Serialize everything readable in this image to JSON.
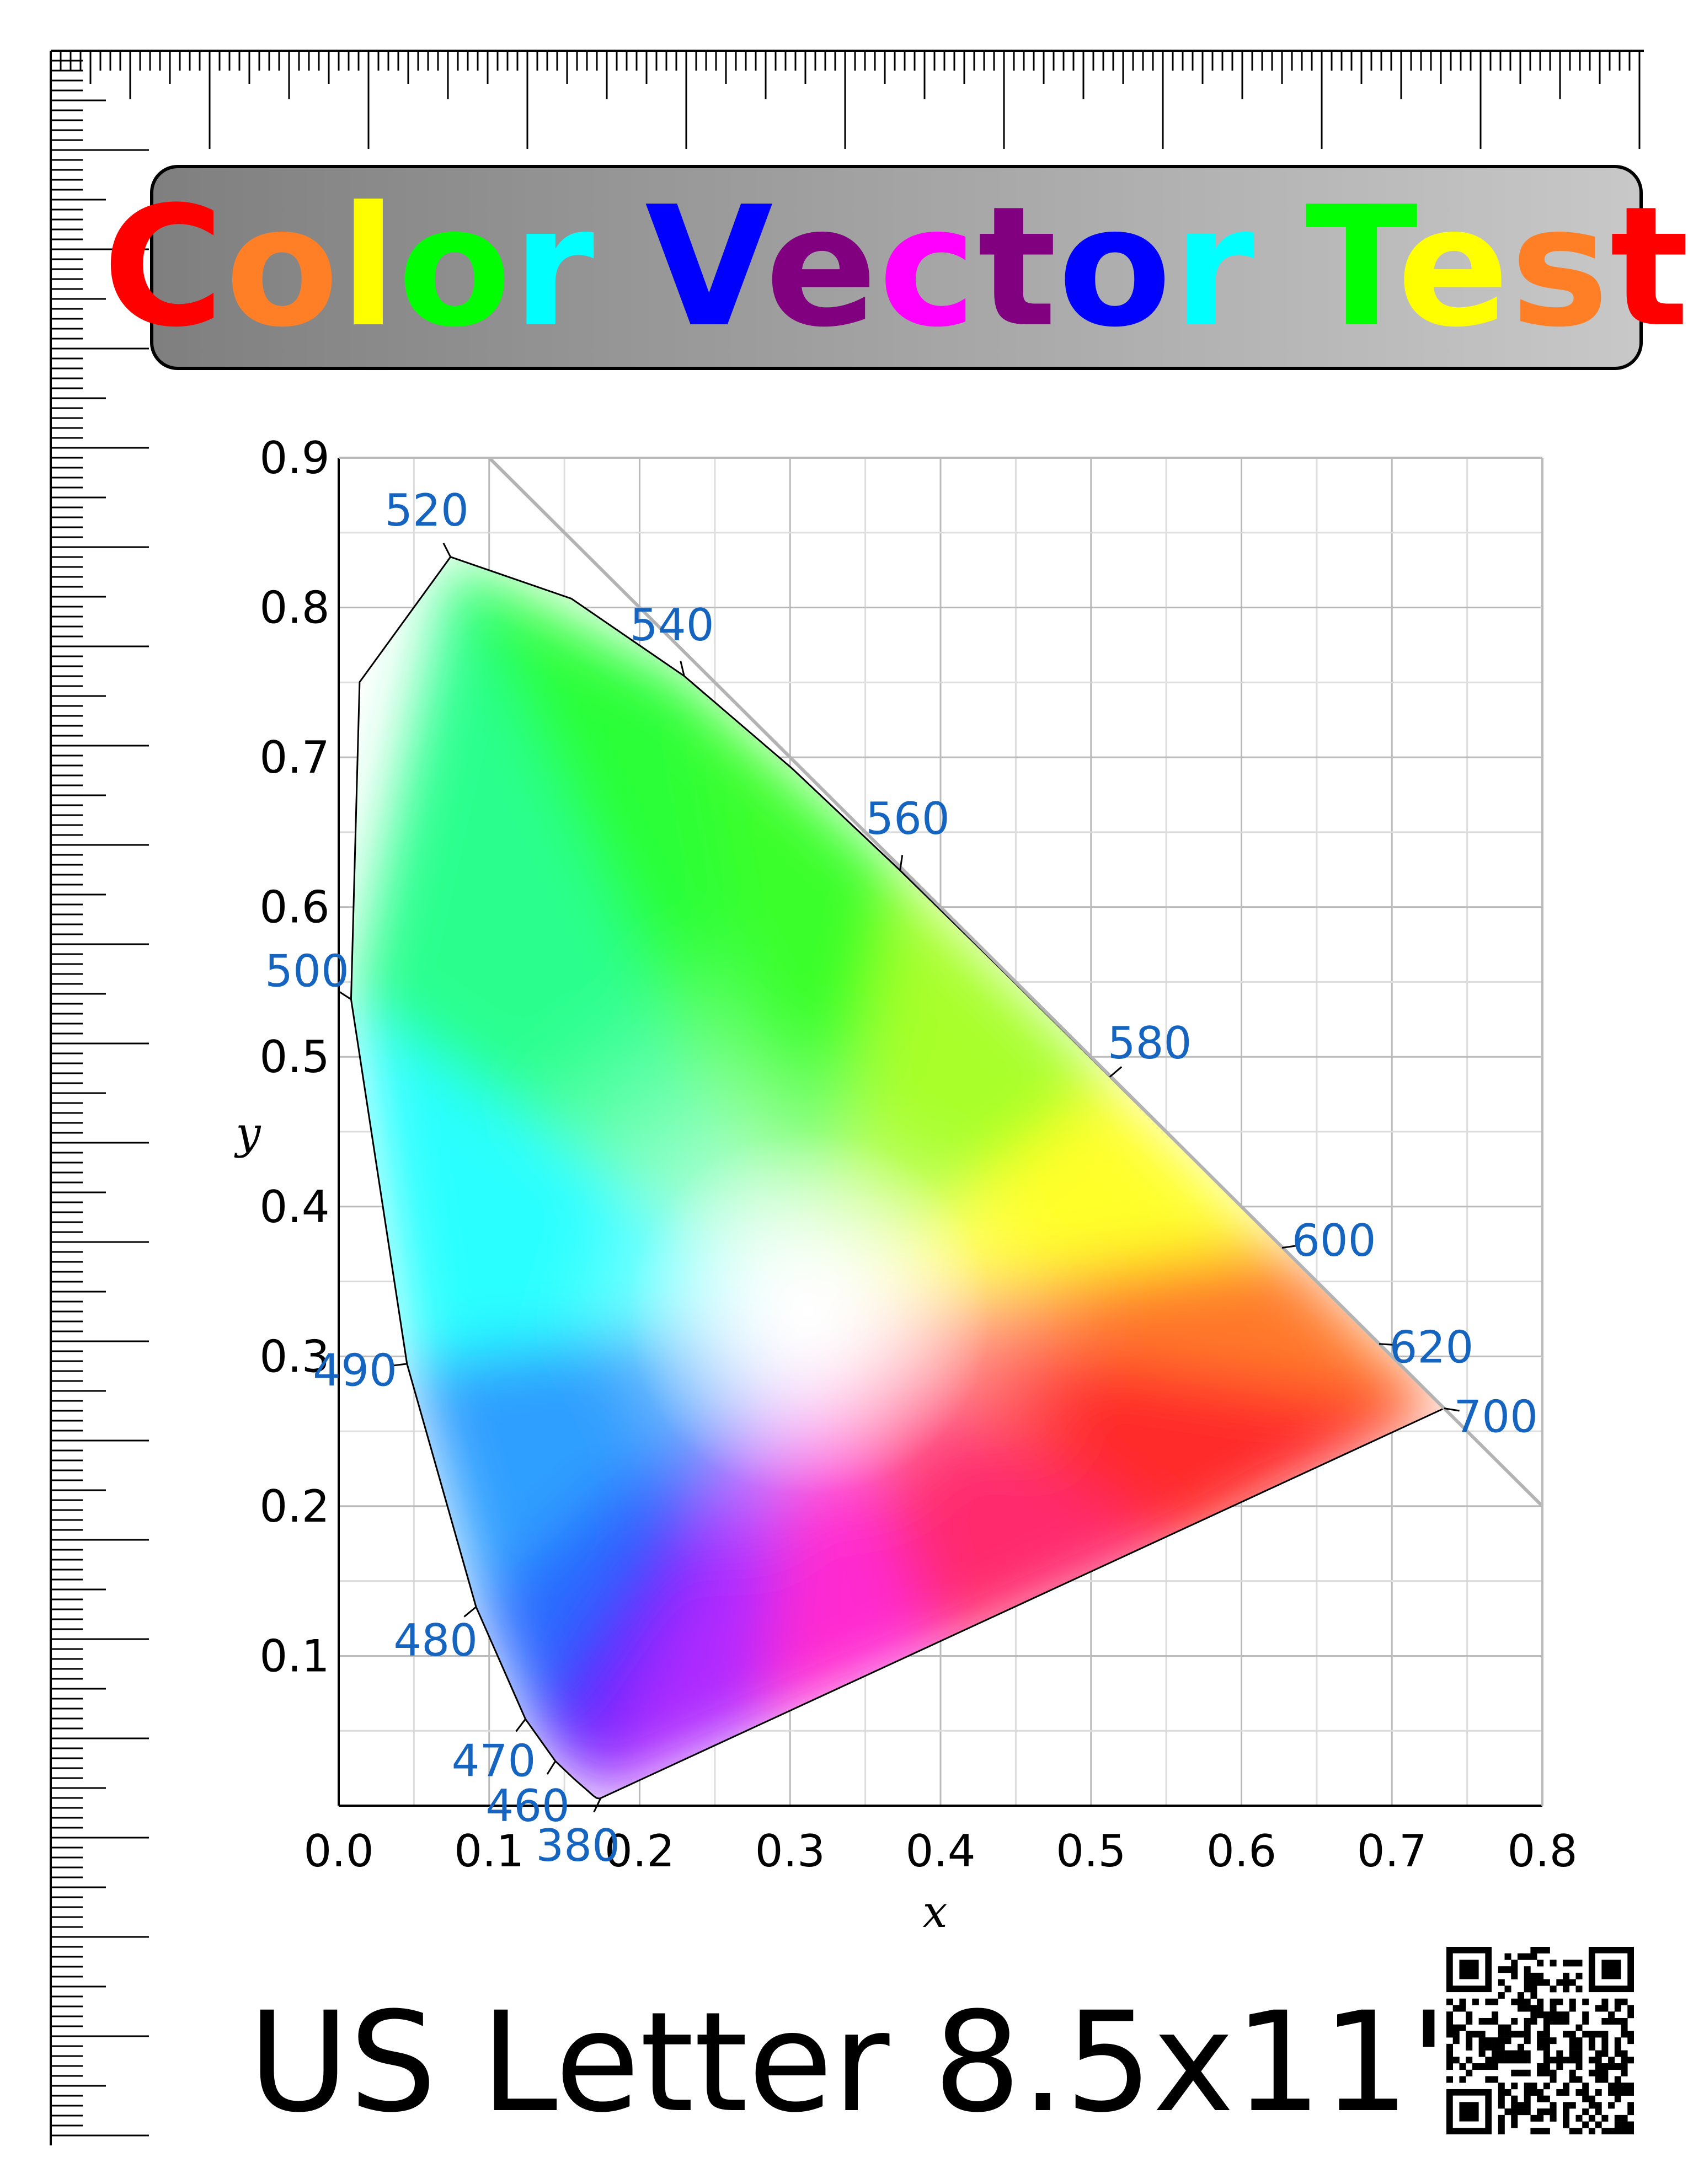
{
  "title": {
    "text": "Color Vector Test",
    "letters": [
      {
        "ch": "C",
        "color": "#ff0000"
      },
      {
        "ch": "o",
        "color": "#ff7f27"
      },
      {
        "ch": "l",
        "color": "#ffff00"
      },
      {
        "ch": "o",
        "color": "#00ff00"
      },
      {
        "ch": "r",
        "color": "#00ffff"
      },
      {
        "ch": " ",
        "color": "#000000"
      },
      {
        "ch": "V",
        "color": "#0000ff"
      },
      {
        "ch": "e",
        "color": "#800080"
      },
      {
        "ch": "c",
        "color": "#ff00ff"
      },
      {
        "ch": "t",
        "color": "#800080"
      },
      {
        "ch": "o",
        "color": "#0000ff"
      },
      {
        "ch": "r",
        "color": "#00ffff"
      },
      {
        "ch": " ",
        "color": "#000000"
      },
      {
        "ch": "T",
        "color": "#00ff00"
      },
      {
        "ch": "e",
        "color": "#ffff00"
      },
      {
        "ch": "s",
        "color": "#ff7f27"
      },
      {
        "ch": "t",
        "color": "#ff0000"
      }
    ]
  },
  "footer": {
    "text": "US Letter 8.5x11\""
  },
  "qr_code": {
    "icon": "qr-code-icon"
  },
  "ruler": {
    "icon": "ruler-icon"
  },
  "chart_data": {
    "type": "chromaticity-diagram",
    "xlabel": "x",
    "ylabel": "y",
    "xlim": [
      0,
      0.8
    ],
    "ylim": [
      0,
      0.9
    ],
    "x_ticks": [
      "0.0",
      "0.1",
      "0.2",
      "0.3",
      "0.4",
      "0.5",
      "0.6",
      "0.7",
      "0.8"
    ],
    "y_ticks": [
      "0.1",
      "0.2",
      "0.3",
      "0.4",
      "0.5",
      "0.6",
      "0.7",
      "0.8",
      "0.9"
    ],
    "grid": true,
    "spectral_locus": [
      [
        0.1741,
        0.005
      ],
      [
        0.1738,
        0.0049
      ],
      [
        0.173,
        0.0048
      ],
      [
        0.1714,
        0.0051
      ],
      [
        0.1689,
        0.0069
      ],
      [
        0.1644,
        0.0109
      ],
      [
        0.1566,
        0.0177
      ],
      [
        0.144,
        0.0297
      ],
      [
        0.1241,
        0.0578
      ],
      [
        0.0913,
        0.1327
      ],
      [
        0.0454,
        0.295
      ],
      [
        0.0082,
        0.5384
      ],
      [
        0.0139,
        0.7502
      ],
      [
        0.0743,
        0.8338
      ],
      [
        0.1547,
        0.8059
      ],
      [
        0.2296,
        0.7543
      ],
      [
        0.3016,
        0.6923
      ],
      [
        0.3731,
        0.6245
      ],
      [
        0.4441,
        0.5547
      ],
      [
        0.5125,
        0.4866
      ],
      [
        0.5752,
        0.4242
      ],
      [
        0.627,
        0.3725
      ],
      [
        0.6658,
        0.334
      ],
      [
        0.6915,
        0.3083
      ],
      [
        0.7079,
        0.292
      ],
      [
        0.719,
        0.2809
      ],
      [
        0.726,
        0.274
      ],
      [
        0.73,
        0.27
      ],
      [
        0.7347,
        0.2653
      ]
    ],
    "wavelength_labels": [
      {
        "nm": "380",
        "x": 0.1741,
        "y": 0.005
      },
      {
        "nm": "460",
        "x": 0.144,
        "y": 0.0297
      },
      {
        "nm": "470",
        "x": 0.1241,
        "y": 0.0578
      },
      {
        "nm": "480",
        "x": 0.0913,
        "y": 0.1327
      },
      {
        "nm": "490",
        "x": 0.0454,
        "y": 0.295
      },
      {
        "nm": "500",
        "x": 0.0082,
        "y": 0.5384
      },
      {
        "nm": "520",
        "x": 0.0743,
        "y": 0.8338
      },
      {
        "nm": "540",
        "x": 0.2296,
        "y": 0.7543
      },
      {
        "nm": "560",
        "x": 0.3731,
        "y": 0.6245
      },
      {
        "nm": "580",
        "x": 0.5125,
        "y": 0.4866
      },
      {
        "nm": "600",
        "x": 0.627,
        "y": 0.3725
      },
      {
        "nm": "620",
        "x": 0.6915,
        "y": 0.3083
      },
      {
        "nm": "700",
        "x": 0.7347,
        "y": 0.2653
      }
    ],
    "boundary_line": [
      [
        0.1,
        0.9
      ],
      [
        0.8,
        0.2
      ]
    ],
    "colors": {
      "label": "#1565c0",
      "grid": "#dddddd",
      "major_grid": "#bbbbbb",
      "boundary": "#b3b3b3"
    }
  }
}
